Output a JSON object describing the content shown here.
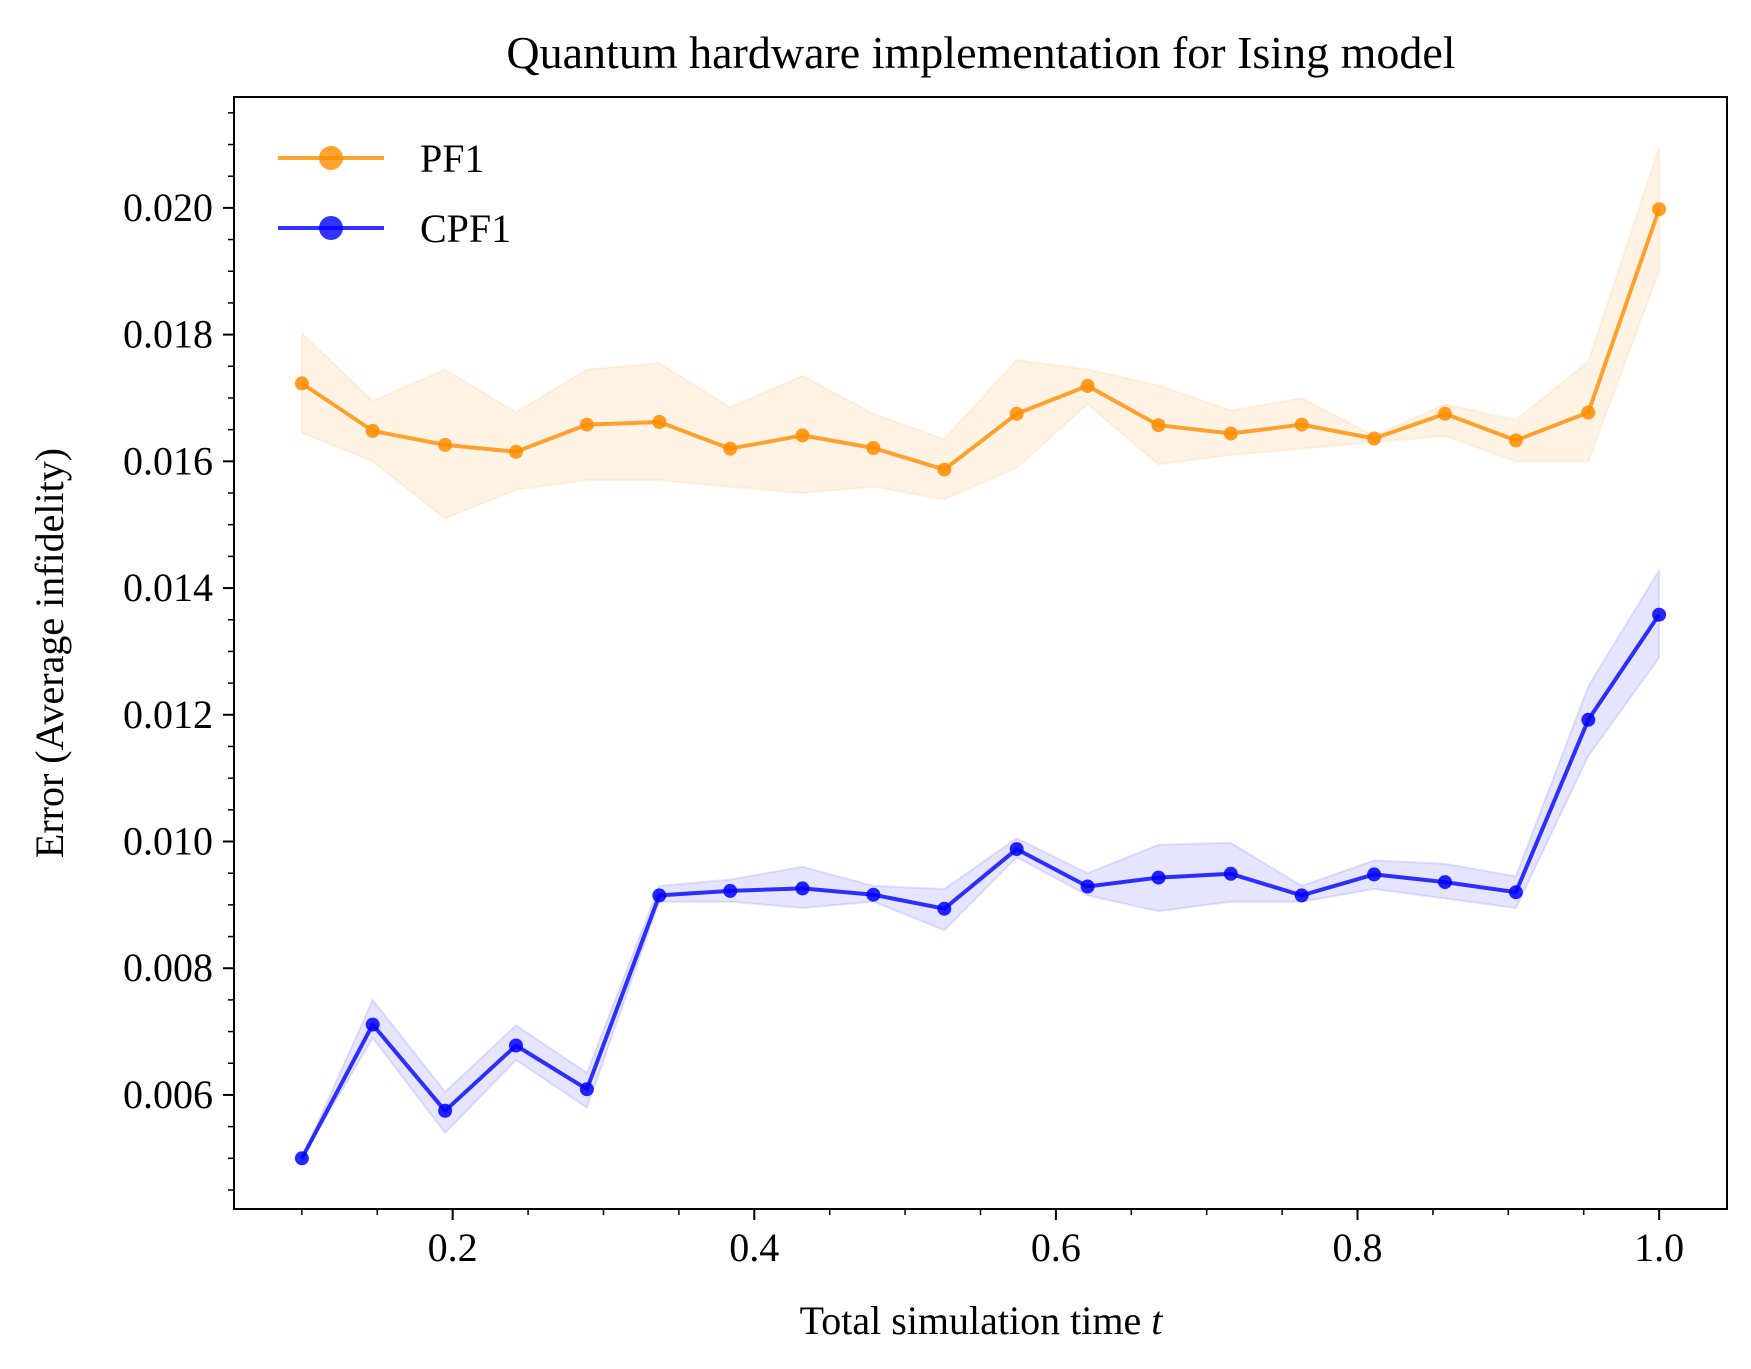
{
  "chart_data": {
    "type": "line",
    "title": "Quantum hardware implementation for Ising model",
    "xlabel": "Total simulation time ",
    "xlabel_var": "t",
    "ylabel": "Error (Average infidelity)",
    "xlim": [
      0.055,
      1.045
    ],
    "ylim": [
      0.0042,
      0.02175
    ],
    "x_ticks": [
      0.2,
      0.4,
      0.6,
      0.8,
      1.0
    ],
    "x_tick_labels": [
      "0.2",
      "0.4",
      "0.6",
      "0.8",
      "1.0"
    ],
    "y_ticks": [
      0.006,
      0.008,
      0.01,
      0.012,
      0.014,
      0.016,
      0.018,
      0.02
    ],
    "y_tick_labels": [
      "0.006",
      "0.008",
      "0.010",
      "0.012",
      "0.014",
      "0.016",
      "0.018",
      "0.020"
    ],
    "grid": false,
    "legend_position": "top-left",
    "x": [
      0.1,
      0.147,
      0.195,
      0.242,
      0.289,
      0.337,
      0.384,
      0.432,
      0.479,
      0.526,
      0.574,
      0.621,
      0.668,
      0.716,
      0.763,
      0.811,
      0.858,
      0.905,
      0.953,
      1.0
    ],
    "series": [
      {
        "name": "PF1",
        "color": "#ff8c00",
        "values": [
          0.01723,
          0.01648,
          0.01626,
          0.01615,
          0.01658,
          0.01662,
          0.0162,
          0.01641,
          0.01621,
          0.01587,
          0.01675,
          0.01719,
          0.01657,
          0.01644,
          0.01658,
          0.01636,
          0.01675,
          0.01633,
          0.01677,
          0.01998
        ],
        "lower": [
          0.01645,
          0.016,
          0.0151,
          0.01555,
          0.0157,
          0.0157,
          0.0156,
          0.0155,
          0.0156,
          0.0154,
          0.0159,
          0.0169,
          0.01595,
          0.0161,
          0.0162,
          0.0163,
          0.0164,
          0.016,
          0.016,
          0.019
        ],
        "upper": [
          0.01802,
          0.01695,
          0.01745,
          0.01677,
          0.01745,
          0.01755,
          0.01685,
          0.01735,
          0.01675,
          0.01635,
          0.0176,
          0.01745,
          0.0172,
          0.0168,
          0.017,
          0.0164,
          0.0169,
          0.01665,
          0.01757,
          0.02095
        ]
      },
      {
        "name": "CPF1",
        "color": "#0000ff",
        "values": [
          0.005,
          0.00711,
          0.00575,
          0.00678,
          0.00609,
          0.00915,
          0.00922,
          0.00926,
          0.00916,
          0.00894,
          0.00988,
          0.00929,
          0.00943,
          0.00949,
          0.00915,
          0.00948,
          0.00936,
          0.0092,
          0.01192,
          0.01358
        ],
        "lower": [
          0.005,
          0.0069,
          0.0054,
          0.00655,
          0.0058,
          0.00905,
          0.00905,
          0.00895,
          0.00905,
          0.0086,
          0.00975,
          0.00915,
          0.0089,
          0.00905,
          0.00905,
          0.00925,
          0.0091,
          0.00895,
          0.01135,
          0.0129
        ],
        "upper": [
          0.005,
          0.0075,
          0.00605,
          0.0071,
          0.00635,
          0.0093,
          0.0094,
          0.0096,
          0.0093,
          0.00925,
          0.01005,
          0.0095,
          0.00995,
          0.00998,
          0.0093,
          0.0097,
          0.00965,
          0.00945,
          0.01245,
          0.01428
        ]
      }
    ]
  }
}
